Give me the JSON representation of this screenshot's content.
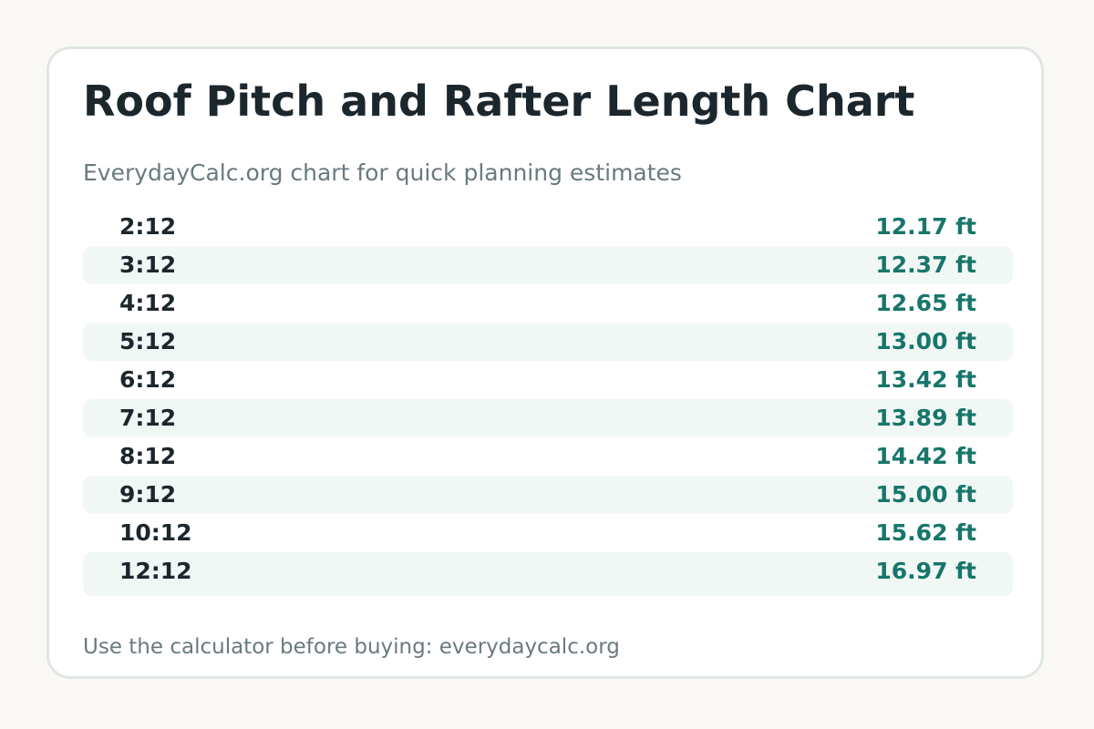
{
  "page": {
    "title": "Roof Pitch and Rafter Length Chart",
    "subtitle": "EverydayCalc.org chart for quick planning estimates",
    "footer": "Use the calculator before buying: everydaycalc.org"
  },
  "table": {
    "rows": [
      {
        "pitch": "2:12",
        "length": "12.17 ft"
      },
      {
        "pitch": "3:12",
        "length": "12.37 ft"
      },
      {
        "pitch": "4:12",
        "length": "12.65 ft"
      },
      {
        "pitch": "5:12",
        "length": "13.00 ft"
      },
      {
        "pitch": "6:12",
        "length": "13.42 ft"
      },
      {
        "pitch": "7:12",
        "length": "13.89 ft"
      },
      {
        "pitch": "8:12",
        "length": "14.42 ft"
      },
      {
        "pitch": "9:12",
        "length": "15.00 ft"
      },
      {
        "pitch": "10:12",
        "length": "15.62 ft"
      },
      {
        "pitch": "12:12",
        "length": "16.97 ft"
      }
    ]
  },
  "colors": {
    "background": "#f9f8f5",
    "card": "#ffffff",
    "card_border": "#dfe6e4",
    "title_text": "#1c262d",
    "muted_text": "#6a7980",
    "accent_green": "#17766a",
    "row_shade": "#f1f7f5"
  }
}
